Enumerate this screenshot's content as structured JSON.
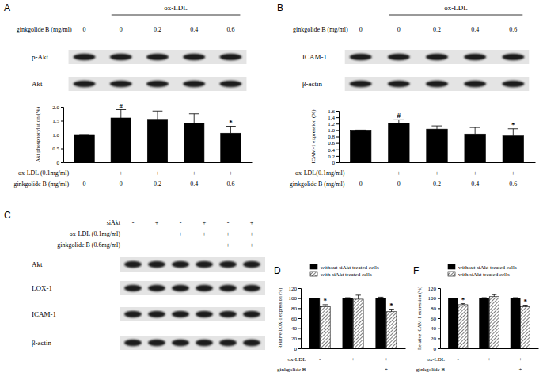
{
  "chart_data": [
    {
      "type": "bar",
      "y_label": "Akt phosphorylation (%)",
      "color": "#000000",
      "categories": [
        null,
        null,
        null,
        null,
        null
      ],
      "values": [
        1.0,
        1.6,
        1.55,
        1.4,
        1.05
      ],
      "errors": [
        0,
        0.3,
        0.3,
        0.35,
        0.25
      ],
      "ylim": [
        0,
        2
      ],
      "yticks": [
        0,
        0.5,
        {
          "value": 1,
          "label": "1.0"
        },
        1.5,
        {
          "value": 2,
          "label": "2.0"
        }
      ],
      "annotations": [
        {
          "text": "#",
          "index": 1
        },
        {
          "text": "*",
          "index": 4
        }
      ],
      "x_table": [
        {
          "label": "ox-LDL (0.1mg/ml)",
          "values": [
            "-",
            "+",
            "+",
            "+",
            "+"
          ]
        },
        {
          "label": "ginkgolide B (mg/ml)",
          "values": [
            0,
            0,
            0.2,
            0.4,
            0.6
          ]
        }
      ]
    },
    {
      "type": "bar",
      "y_label": "ICAM-1 expression (%)",
      "color": "#000000",
      "categories": [
        null,
        null,
        null,
        null,
        null
      ],
      "values": [
        1.0,
        1.22,
        1.03,
        0.88,
        0.82
      ],
      "errors": [
        0,
        0.1,
        0.1,
        0.2,
        0.22
      ],
      "ylim": [
        0,
        1.6
      ],
      "yticks": [
        0,
        0.2,
        0.4,
        0.6,
        0.8,
        {
          "value": 1,
          "label": "1.0"
        },
        1.2,
        1.4,
        1.6
      ],
      "annotations": [
        {
          "text": "#",
          "index": 1
        },
        {
          "text": "*",
          "index": 4
        }
      ],
      "x_table": [
        {
          "label": "ox-LDL(0.1mg/ml)",
          "values": [
            "-",
            "+",
            "+",
            "+",
            "+"
          ]
        },
        {
          "label": "ginkgolide B (mg/ml)",
          "values": [
            0,
            0,
            0.2,
            0.4,
            0.6
          ]
        }
      ]
    },
    {
      "type": "bar",
      "panel_label": "D",
      "y_label": "Relative LOX-1 expression (%)",
      "legend": "top",
      "categories": [
        null,
        null,
        null
      ],
      "series": [
        {
          "name": "without siAkt treated cells",
          "color": "#000000",
          "values": [
            100,
            100,
            100
          ],
          "errors": [
            0,
            1,
            2
          ]
        },
        {
          "name": "with siAkt treated cells",
          "color": "#ffffff",
          "values": [
            83,
            98,
            73
          ],
          "errors": [
            4,
            8,
            5
          ]
        }
      ],
      "ylim": [
        0,
        120
      ],
      "yticks": [
        0,
        20,
        40,
        60,
        80,
        100,
        120
      ],
      "annotations": [
        {
          "text": "*",
          "index": 0,
          "series": 1
        },
        {
          "text": "*",
          "index": 2,
          "series": 1
        }
      ],
      "x_table": [
        {
          "label": "ox-LDL",
          "values": [
            "-",
            "+",
            "+"
          ]
        },
        {
          "label": "ginkgolide B",
          "values": [
            "-",
            "-",
            "+"
          ]
        }
      ]
    },
    {
      "type": "bar",
      "panel_label": "F",
      "y_label": "Relative ICAM-1 expression (%)",
      "legend": "top",
      "categories": [
        null,
        null,
        null
      ],
      "series": [
        {
          "name": "without siAkt treated cells",
          "color": "#000000",
          "values": [
            100,
            100,
            100
          ],
          "errors": [
            0,
            1,
            1
          ]
        },
        {
          "name": "with siAkt treated cells",
          "color": "#ffffff",
          "values": [
            87,
            103,
            83
          ],
          "errors": [
            2,
            4,
            3
          ]
        }
      ],
      "ylim": [
        0,
        120
      ],
      "yticks": [
        0,
        20,
        40,
        60,
        80,
        100,
        120
      ],
      "annotations": [
        {
          "text": "*",
          "index": 0,
          "series": 1
        },
        {
          "text": "*",
          "index": 2,
          "series": 1
        }
      ],
      "x_table": [
        {
          "label": "ox-LDL",
          "values": [
            "-",
            "+",
            "+"
          ]
        },
        {
          "label": "ginkgolide B",
          "values": [
            "-",
            "-",
            "+"
          ]
        }
      ]
    }
  ],
  "blots": [
    {
      "panel_label": "A",
      "header": "ox-LDL",
      "conditions": [
        {
          "label": "ginkgolide B (mg/ml)",
          "values": [
            0,
            0,
            0.2,
            0.4,
            0.6
          ]
        }
      ],
      "bands": [
        "p-Akt",
        "Akt"
      ]
    },
    {
      "panel_label": "B",
      "header": "ox-LDL",
      "conditions": [
        {
          "label": "ginkgolide B (mg/ml)",
          "values": [
            0,
            0,
            0.2,
            0.4,
            0.6
          ]
        }
      ],
      "bands": [
        "ICAM-1",
        "β-actin"
      ]
    },
    {
      "panel_label": "C",
      "conditions": [
        {
          "label": "siAkt",
          "values": [
            "-",
            "+",
            "-",
            "+",
            "-",
            "+"
          ]
        },
        {
          "label": "ox-LDL (0.1mg/ml)",
          "values": [
            "-",
            "-",
            "+",
            "+",
            "+",
            "+"
          ]
        },
        {
          "label": "ginkgolide B (0.6mg/ml)",
          "values": [
            "-",
            "-",
            "-",
            "-",
            "+",
            "+"
          ]
        }
      ],
      "bands": [
        "Akt",
        "LOX-1",
        "ICAM-1",
        "β-actin"
      ]
    }
  ]
}
